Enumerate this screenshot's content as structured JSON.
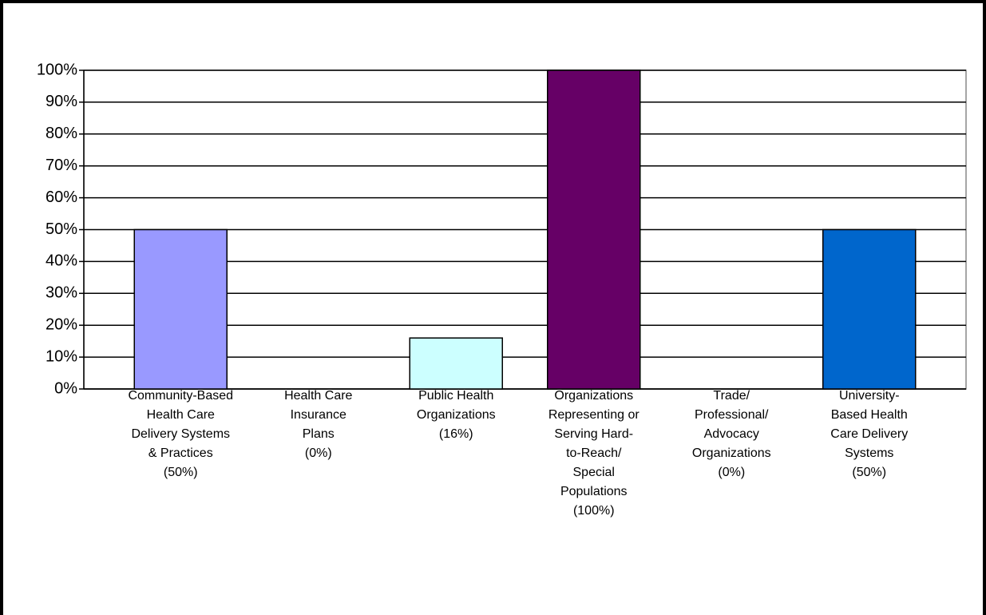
{
  "chart_data": {
    "type": "bar",
    "categories": [
      [
        "Community-Based",
        "Health Care",
        "Delivery Systems",
        "& Practices",
        "(50%)"
      ],
      [
        "Health Care",
        "Insurance",
        "Plans",
        "(0%)"
      ],
      [
        "Public Health",
        "Organizations",
        "(16%)"
      ],
      [
        "Organizations",
        "Representing or",
        "Serving Hard-",
        "to-Reach/",
        "Special",
        "Populations",
        "(100%)"
      ],
      [
        "Trade/",
        "Professional/",
        "Advocacy",
        "Organizations",
        "(0%)"
      ],
      [
        "University-",
        "Based Health",
        "Care Delivery",
        "Systems",
        "(50%)"
      ]
    ],
    "values": [
      50,
      0,
      16,
      100,
      0,
      50
    ],
    "colors": [
      "#9999ff",
      "#993366",
      "#ccffff",
      "#660066",
      "#ff8080",
      "#0066cc"
    ],
    "ylim": [
      0,
      100
    ],
    "yticks": [
      {
        "value": 0,
        "label": "0%"
      },
      {
        "value": 10,
        "label": "10%"
      },
      {
        "value": 20,
        "label": "20%"
      },
      {
        "value": 30,
        "label": "30%"
      },
      {
        "value": 40,
        "label": "40%"
      },
      {
        "value": 50,
        "label": "50%"
      },
      {
        "value": 60,
        "label": "60%"
      },
      {
        "value": 70,
        "label": "70%"
      },
      {
        "value": 80,
        "label": "80%"
      },
      {
        "value": 90,
        "label": "90%"
      },
      {
        "value": 100,
        "label": "100%"
      }
    ],
    "grid": true
  }
}
